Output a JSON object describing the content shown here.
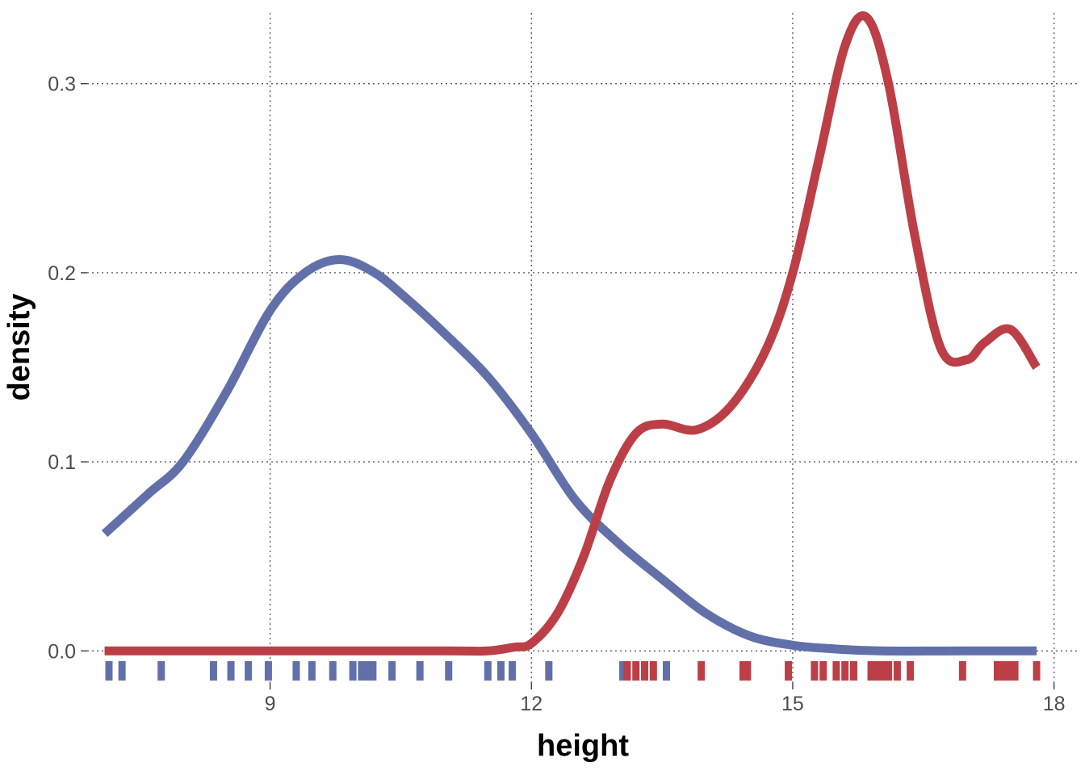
{
  "chart_data": {
    "type": "density",
    "xlabel": "height",
    "ylabel": "density",
    "xlim": [
      6.9,
      18.3
    ],
    "ylim": [
      -0.005,
      0.34
    ],
    "x_ticks": [
      9,
      12,
      15,
      18
    ],
    "x_tick_labels": [
      "9",
      "12",
      "15",
      "18"
    ],
    "y_ticks": [
      0.0,
      0.1,
      0.2,
      0.3
    ],
    "y_tick_labels": [
      "0.0",
      "0.1",
      "0.2",
      "0.3"
    ],
    "grid": true,
    "legend": "none",
    "series": [
      {
        "color": "#6270aa",
        "x": [
          7.1,
          7.6,
          8.0,
          8.5,
          9.0,
          9.4,
          9.8,
          10.2,
          10.6,
          11.0,
          11.5,
          12.0,
          12.5,
          13.0,
          13.5,
          14.0,
          14.5,
          15.0,
          15.5,
          16.0,
          17.0,
          17.8
        ],
        "y": [
          0.062,
          0.083,
          0.1,
          0.137,
          0.18,
          0.2,
          0.207,
          0.2,
          0.185,
          0.168,
          0.145,
          0.115,
          0.08,
          0.057,
          0.038,
          0.02,
          0.008,
          0.003,
          0.001,
          0.0,
          0.0,
          0.0
        ]
      },
      {
        "color": "#bc3f47",
        "x": [
          7.1,
          9.0,
          11.0,
          11.5,
          11.8,
          12.0,
          12.3,
          12.6,
          12.9,
          13.2,
          13.5,
          13.9,
          14.3,
          14.7,
          15.0,
          15.3,
          15.6,
          15.85,
          16.1,
          16.4,
          16.7,
          17.0,
          17.2,
          17.5,
          17.8
        ],
        "y": [
          0.0,
          0.0,
          0.0,
          0.0,
          0.002,
          0.004,
          0.02,
          0.05,
          0.09,
          0.115,
          0.12,
          0.117,
          0.13,
          0.16,
          0.2,
          0.26,
          0.32,
          0.335,
          0.3,
          0.22,
          0.16,
          0.154,
          0.163,
          0.17,
          0.15
        ]
      }
    ],
    "rugs": [
      {
        "color": "#6270aa",
        "values": [
          7.15,
          7.3,
          7.75,
          8.35,
          8.55,
          8.75,
          8.98,
          9.3,
          9.48,
          9.72,
          9.95,
          10.05,
          10.12,
          10.18,
          10.4,
          10.72,
          11.05,
          11.5,
          11.65,
          11.78,
          12.2,
          13.05,
          13.55
        ]
      },
      {
        "color": "#bc3f47",
        "values": [
          13.1,
          13.2,
          13.3,
          13.4,
          13.95,
          14.43,
          14.48,
          14.95,
          15.25,
          15.35,
          15.5,
          15.6,
          15.7,
          15.9,
          15.95,
          16.0,
          16.05,
          16.1,
          16.2,
          16.35,
          16.95,
          17.35,
          17.42,
          17.48,
          17.55,
          17.8
        ]
      }
    ]
  }
}
